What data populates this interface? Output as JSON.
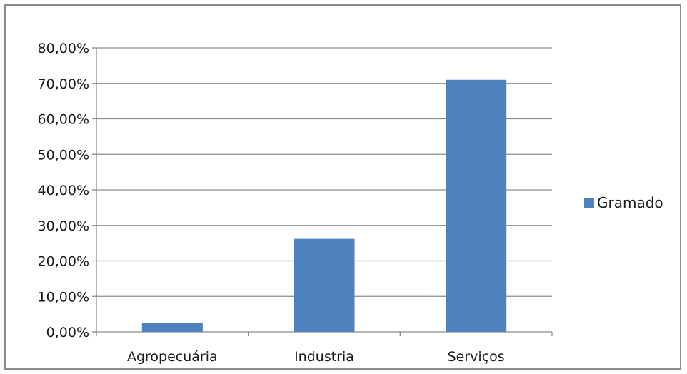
{
  "chart_data": {
    "type": "bar",
    "categories": [
      "Agropecuária",
      "Industria",
      "Serviços"
    ],
    "series": [
      {
        "name": "Gramado",
        "values": [
          0.025,
          0.262,
          0.71
        ]
      }
    ],
    "ylim": [
      0,
      0.8
    ],
    "yticks": [
      0,
      0.1,
      0.2,
      0.3,
      0.4,
      0.5,
      0.6,
      0.7,
      0.8
    ],
    "ytick_labels": [
      "0,00%",
      "10,00%",
      "20,00%",
      "30,00%",
      "40,00%",
      "50,00%",
      "60,00%",
      "70,00%",
      "80,00%"
    ],
    "grid": true,
    "legend_position": "right",
    "colors": {
      "bar": "#4f81bd",
      "grid": "#8c8c8c",
      "axis": "#8c8c8c"
    }
  }
}
